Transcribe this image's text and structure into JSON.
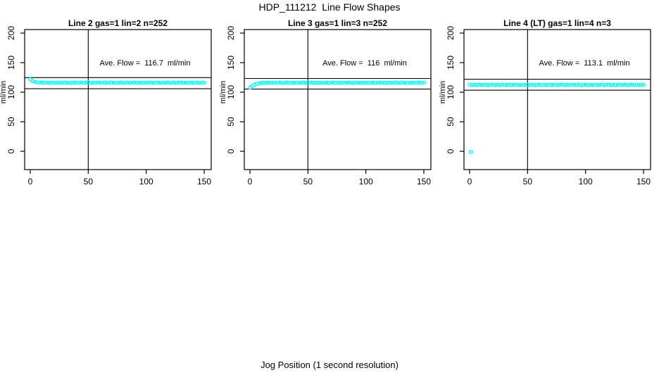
{
  "page": {
    "main_title": "HDP_111212  Line Flow Shapes",
    "shared_xlabel": "Jog Position (1 second resolution)"
  },
  "colors": {
    "point": "#00ffff",
    "line": "#000000",
    "text": "#000000",
    "background": "#ffffff"
  },
  "axes": {
    "x_ticks": [
      0,
      50,
      100,
      150
    ],
    "y_ticks": [
      0,
      50,
      100,
      150,
      200
    ],
    "xlim": [
      0,
      150
    ],
    "ylim": [
      0,
      200
    ],
    "ylabel": "ml/min"
  },
  "chart_data": [
    {
      "type": "scatter",
      "title": "Line 2 gas=1 lin=2 n=252",
      "annotation": "Ave. Flow =  116.7  ml/min",
      "ave_flow_ml_min": 116.7,
      "n": 252,
      "ylabel": "ml/min",
      "ref_line_vertical_x": 50,
      "ref_lines_horizontal_y": [
        124.6,
        105.9
      ],
      "x_start": 0,
      "x_step": 2,
      "values": [
        121.8,
        118.8,
        117.2,
        116.6,
        116.3,
        116.4,
        115.9,
        116.2,
        115.8,
        116.3,
        116.1,
        116.0,
        116.5,
        115.7,
        116.3,
        116.4,
        115.9,
        116.2,
        115.8,
        116.3,
        116.1,
        116.0,
        116.5,
        115.7,
        116.3,
        116.4,
        115.9,
        116.2,
        115.8,
        116.3,
        116.1,
        116.0,
        116.5,
        115.7,
        116.3,
        116.4,
        115.9,
        116.2,
        115.8,
        116.3,
        116.1,
        116.0,
        116.5,
        115.7,
        116.3,
        116.4,
        115.9,
        116.2,
        115.8,
        116.3,
        116.1,
        116.0,
        116.5,
        115.7,
        116.3,
        116.4,
        115.9,
        116.2,
        115.8,
        116.3,
        116.1,
        116.0,
        116.5,
        115.7,
        116.3,
        116.4,
        115.9,
        116.2,
        115.8,
        116.3,
        116.1,
        116.0,
        116.5,
        115.7,
        116.3,
        116.0
      ],
      "extra_points": []
    },
    {
      "type": "scatter",
      "title": "Line 3 gas=1 lin=3 n=252",
      "annotation": "Ave. Flow =  116  ml/min",
      "ave_flow_ml_min": 116,
      "n": 252,
      "ylabel": "ml/min",
      "ref_line_vertical_x": 50,
      "ref_lines_horizontal_y": [
        123.2,
        105.3
      ],
      "x_start": 0,
      "x_step": 2,
      "values": [
        107.6,
        110.6,
        113.0,
        114.5,
        115.3,
        115.7,
        116.3,
        115.8,
        116.1,
        115.7,
        116.2,
        116.0,
        115.9,
        116.4,
        115.6,
        116.2,
        116.3,
        115.8,
        116.1,
        115.7,
        116.2,
        116.0,
        115.9,
        116.4,
        115.6,
        116.2,
        116.3,
        115.8,
        116.1,
        115.7,
        116.2,
        116.0,
        115.9,
        116.4,
        115.6,
        116.2,
        116.3,
        115.8,
        116.1,
        115.7,
        116.2,
        116.0,
        115.9,
        116.4,
        115.6,
        116.2,
        116.3,
        115.8,
        116.1,
        115.7,
        116.2,
        116.0,
        115.9,
        116.4,
        115.6,
        116.2,
        116.3,
        115.8,
        116.1,
        115.7,
        116.2,
        116.0,
        115.9,
        116.4,
        115.6,
        116.2,
        116.3,
        115.8,
        116.1,
        115.7,
        116.2,
        116.0,
        115.9,
        116.4,
        115.6,
        116.2
      ],
      "extra_points": []
    },
    {
      "type": "scatter",
      "title": "Line 4 (LT) gas=1 lin=4 n=3",
      "annotation": "Ave. Flow =  113.1  ml/min",
      "ave_flow_ml_min": 113.1,
      "n": 3,
      "ylabel": "ml/min",
      "ref_line_vertical_x": 50,
      "ref_lines_horizontal_y": [
        122.0,
        103.3
      ],
      "x_start": 0,
      "x_step": 2,
      "values": [
        112.9,
        112.1,
        112.6,
        112.0,
        112.7,
        112.4,
        112.3,
        113.0,
        111.8,
        112.7,
        112.9,
        112.1,
        112.6,
        112.0,
        112.7,
        112.4,
        112.3,
        113.0,
        111.8,
        112.7,
        112.9,
        112.1,
        112.6,
        112.0,
        112.7,
        112.4,
        112.3,
        113.0,
        111.8,
        112.7,
        112.9,
        112.1,
        112.6,
        112.0,
        112.7,
        112.4,
        112.3,
        113.0,
        111.8,
        112.7,
        112.9,
        112.1,
        112.6,
        112.0,
        112.7,
        112.4,
        112.3,
        113.0,
        111.8,
        112.7,
        112.9,
        112.1,
        112.6,
        112.0,
        112.7,
        112.4,
        112.3,
        113.0,
        111.8,
        112.7,
        112.9,
        112.1,
        112.6,
        112.0,
        112.7,
        112.4,
        112.3,
        113.0,
        111.8,
        112.7,
        112.9,
        112.1,
        112.6,
        112.0,
        112.7,
        112.4
      ],
      "extra_points": [
        [
          1,
          -1
        ]
      ]
    }
  ]
}
